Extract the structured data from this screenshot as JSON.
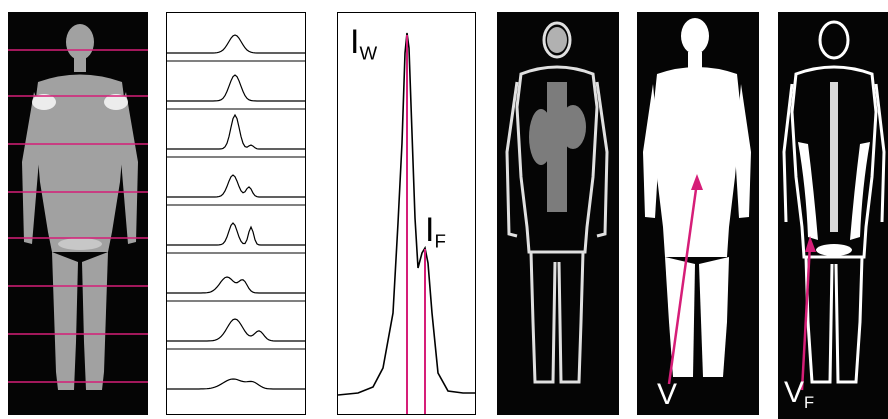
{
  "labels": {
    "iw_main": "I",
    "iw_sub": "W",
    "if_main": "I",
    "if_sub": "F",
    "v": "V",
    "vf_main": "V",
    "vf_sub": "F"
  },
  "colors": {
    "marker": "#d61e78",
    "scan_background": "#050505",
    "tissue": "#d9d9d9",
    "body_mask": "#ffffff",
    "plot_line": "#000000"
  },
  "scan_slices": {
    "count": 8,
    "marker_color": "#d61e78"
  },
  "spectra": {
    "count": 8
  },
  "figure_panels": [
    "mri-with-slice-lines",
    "stacked-spectra",
    "spectrum-detail",
    "mri-coronal-scan",
    "body-mask",
    "fat-map"
  ]
}
